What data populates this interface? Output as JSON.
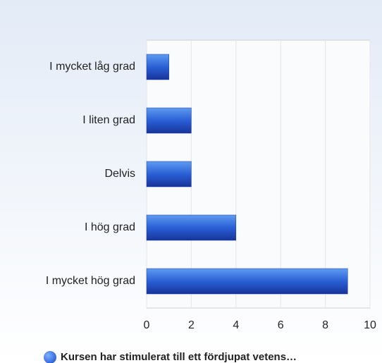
{
  "chart_data": {
    "type": "bar",
    "orientation": "horizontal",
    "categories": [
      "I mycket låg grad",
      "I liten grad",
      "Delvis",
      "I hög grad",
      "I mycket hög grad"
    ],
    "series": [
      {
        "name": "Kursen har stimulerat till ett fördjupat vetens…",
        "color": "#2a5fd6",
        "values": [
          1,
          2,
          2,
          4,
          9
        ]
      }
    ],
    "xlim": [
      0,
      10
    ],
    "xticks": [
      0,
      2,
      4,
      6,
      8,
      10
    ],
    "grid": true,
    "legend": "bottom"
  }
}
